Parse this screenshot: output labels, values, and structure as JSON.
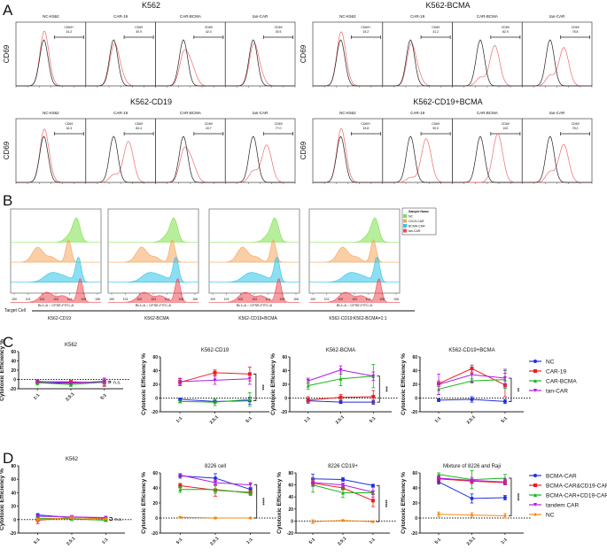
{
  "figure": {
    "panel_letters": [
      "A",
      "B",
      "C",
      "D"
    ]
  },
  "chart_data": [
    {
      "panel": "A",
      "type": "histogram-overlay",
      "y_label": "CD69",
      "groups": [
        {
          "title": "K562",
          "samples": [
            {
              "name": "NC-K562",
              "gate_label": "CD69+",
              "gate_value": "14.2"
            },
            {
              "name": "CAR-19",
              "gate_label": "CD69",
              "gate_value": "30.9"
            },
            {
              "name": "CAR-BCMA",
              "gate_label": "CD69",
              "gate_value": "42.4"
            },
            {
              "name": "tan-CAR",
              "gate_label": "CD69",
              "gate_value": "30.5"
            }
          ]
        },
        {
          "title": "K562-BCMA",
          "samples": [
            {
              "name": "NC-K562",
              "gate_label": "CD69+",
              "gate_value": "15.2"
            },
            {
              "name": "CAR-19",
              "gate_label": "CD69",
              "gate_value": "31.2"
            },
            {
              "name": "CAR-BCMA",
              "gate_label": "CD69",
              "gate_value": "82.9"
            },
            {
              "name": "tan-CAR",
              "gate_label": "CD69",
              "gate_value": "78.8"
            }
          ]
        },
        {
          "title": "K562-CD19",
          "samples": [
            {
              "name": "NC-K562",
              "gate_label": "CD69",
              "gate_value": "16.3"
            },
            {
              "name": "CAR-19",
              "gate_label": "CD69",
              "gate_value": "84.4"
            },
            {
              "name": "CAR-BCMA",
              "gate_label": "CD69",
              "gate_value": "43.7"
            },
            {
              "name": "tan-CAR",
              "gate_label": "CD69",
              "gate_value": "77.0"
            }
          ]
        },
        {
          "title": "K562-CD19+BCMA",
          "samples": [
            {
              "name": "NC-K562",
              "gate_label": "CD69+",
              "gate_value": "15.8"
            },
            {
              "name": "CAR-19",
              "gate_label": "CD69",
              "gate_value": "90.0"
            },
            {
              "name": "CAR-BCMA",
              "gate_label": "CD69",
              "gate_value": "100"
            },
            {
              "name": "tan-CAR",
              "gate_label": "CD69",
              "gate_value": "78.2"
            }
          ]
        }
      ],
      "x_tick_labels": [
        "10^0",
        "10^1",
        "10^2",
        "10^3",
        "10^4",
        "10^5",
        "10^6"
      ]
    },
    {
      "panel": "B",
      "type": "histogram-stacked",
      "x_label": "BL1-A :: CFSE-FITC-A",
      "x_tick_labels": [
        "10^0",
        "10^1",
        "10^2",
        "10^3",
        "10^4",
        "10^5",
        "10^6"
      ],
      "target_cell_label": "Target Cell",
      "target_cells": [
        "K562-CD19",
        "K562-BCMA",
        "K562-CD19+BCMA",
        "K562-CD19:K562-BCMA=1:1"
      ],
      "legend_title": "Sample Name",
      "legend": [
        {
          "name": "NC",
          "color": "#7be04a"
        },
        {
          "name": "CD19-CAR",
          "color": "#f5a55c"
        },
        {
          "name": "BCMA-CAR",
          "color": "#2ec4e8"
        },
        {
          "name": "tan-CAR",
          "color": "#ee4d55"
        }
      ]
    },
    {
      "panel": "C",
      "type": "line",
      "ylabel": "Cytotoxic Efficiency %",
      "ylim": [
        -20,
        60
      ],
      "yticks": [
        -20,
        0,
        20,
        40,
        60
      ],
      "categories": [
        "1:1",
        "2.5:1",
        "5:1"
      ],
      "legend": [
        {
          "name": "NC",
          "color": "#1f2fe0",
          "marker": "circle"
        },
        {
          "name": "CAR-19",
          "color": "#ee1c1c",
          "marker": "square"
        },
        {
          "name": "CAR-BCMA",
          "color": "#18b418",
          "marker": "triangle"
        },
        {
          "name": "tan-CAR",
          "color": "#b01ee0",
          "marker": "triangle-down"
        }
      ],
      "charts": [
        {
          "title": "K562",
          "significance": "n.s.",
          "series": [
            {
              "name": "NC",
              "values": [
                -7,
                -8,
                -4
              ],
              "err": [
                2,
                2,
                2
              ]
            },
            {
              "name": "CAR-19",
              "values": [
                -5,
                -5,
                -7
              ],
              "err": [
                3,
                2,
                8
              ]
            },
            {
              "name": "CAR-BCMA",
              "values": [
                -7,
                -11,
                -6
              ],
              "err": [
                5,
                4,
                4
              ]
            },
            {
              "name": "tan-CAR",
              "values": [
                -4,
                -7,
                -5
              ],
              "err": [
                3,
                3,
                8
              ]
            }
          ]
        },
        {
          "title": "K562-CD19",
          "significance": "***",
          "series": [
            {
              "name": "NC",
              "values": [
                -2,
                -5,
                -4
              ],
              "err": [
                2,
                2,
                5
              ]
            },
            {
              "name": "CAR-19",
              "values": [
                23,
                37,
                35
              ],
              "err": [
                5,
                4,
                10
              ]
            },
            {
              "name": "CAR-BCMA",
              "values": [
                -5,
                -6,
                -2
              ],
              "err": [
                2,
                5,
                10
              ]
            },
            {
              "name": "tan-CAR",
              "values": [
                24,
                26,
                28
              ],
              "err": [
                5,
                6,
                8
              ]
            }
          ]
        },
        {
          "title": "K562-BCMA",
          "significance": "***",
          "series": [
            {
              "name": "NC",
              "values": [
                -4,
                -6,
                -6
              ],
              "err": [
                2,
                2,
                3
              ]
            },
            {
              "name": "CAR-19",
              "values": [
                -3,
                1,
                2
              ],
              "err": [
                5,
                4,
                9
              ]
            },
            {
              "name": "CAR-BCMA",
              "values": [
                18,
                28,
                32
              ],
              "err": [
                5,
                10,
                17
              ]
            },
            {
              "name": "tan-CAR",
              "values": [
                25,
                41,
                32
              ],
              "err": [
                4,
                6,
                6
              ]
            }
          ]
        },
        {
          "title": "K562-CD19+BCMA",
          "significance": "**",
          "series": [
            {
              "name": "NC",
              "values": [
                -3,
                -2,
                -5
              ],
              "err": [
                2,
                4,
                3
              ]
            },
            {
              "name": "CAR-19",
              "values": [
                21,
                43,
                19
              ],
              "err": [
                4,
                5,
                17
              ]
            },
            {
              "name": "CAR-BCMA",
              "values": [
                13,
                25,
                27
              ],
              "err": [
                8,
                3,
                13
              ]
            },
            {
              "name": "tan-CAR",
              "values": [
                20,
                34,
                29
              ],
              "err": [
                15,
                11,
                13
              ]
            }
          ]
        }
      ]
    },
    {
      "panel": "D",
      "type": "line",
      "ylabel": "Cytotoxic Efficiency %",
      "categories": [
        "5:1",
        "2.5:1",
        "1:1"
      ],
      "legend": [
        {
          "name": "BCMA-CAR",
          "color": "#1f2fe0",
          "marker": "circle"
        },
        {
          "name": "BCMA-CAR&CD19-CAR",
          "color": "#ee1c1c",
          "marker": "square"
        },
        {
          "name": "BCMA-CAR+CD19-CAR",
          "color": "#18b418",
          "marker": "triangle"
        },
        {
          "name": "tandem CAR",
          "color": "#b01ee0",
          "marker": "triangle-down"
        },
        {
          "name": "NC",
          "color": "#f58a12",
          "marker": "diamond"
        }
      ],
      "charts": [
        {
          "title": "K562",
          "significance": "n.s.",
          "ylim": [
            -20,
            80
          ],
          "yticks": [
            -20,
            0,
            20,
            40,
            60,
            80
          ],
          "series": [
            {
              "name": "BCMA-CAR",
              "values": [
                7,
                3,
                2
              ],
              "err": [
                2,
                2,
                1
              ]
            },
            {
              "name": "BCMA-CAR&CD19-CAR",
              "values": [
                -1,
                3,
                1
              ],
              "err": [
                5,
                2,
                1
              ]
            },
            {
              "name": "BCMA-CAR+CD19-CAR",
              "values": [
                2,
                1,
                -1
              ],
              "err": [
                2,
                2,
                1
              ]
            },
            {
              "name": "tandem CAR",
              "values": [
                5,
                4,
                3
              ],
              "err": [
                2,
                2,
                1
              ]
            },
            {
              "name": "NC",
              "values": [
                0,
                3,
                1
              ],
              "err": [
                2,
                2,
                1
              ]
            }
          ]
        },
        {
          "title": "8226 cell",
          "significance": "****",
          "ylim": [
            -20,
            60
          ],
          "yticks": [
            -20,
            0,
            20,
            40,
            60
          ],
          "series": [
            {
              "name": "BCMA-CAR",
              "values": [
                56,
                53,
                38
              ],
              "err": [
                3,
                6,
                2
              ]
            },
            {
              "name": "BCMA-CAR&CD19-CAR",
              "values": [
                43,
                37,
                34
              ],
              "err": [
                3,
                8,
                3
              ]
            },
            {
              "name": "BCMA-CAR+CD19-CAR",
              "values": [
                38,
                38,
                33
              ],
              "err": [
                4,
                5,
                3
              ]
            },
            {
              "name": "tandem CAR",
              "values": [
                57,
                47,
                44
              ],
              "err": [
                2,
                3,
                3
              ]
            },
            {
              "name": "NC",
              "values": [
                1,
                0,
                0
              ],
              "err": [
                1,
                1,
                1
              ]
            }
          ]
        },
        {
          "title": "8226 CD19+",
          "significance": "****",
          "ylim": [
            -20,
            80
          ],
          "yticks": [
            -20,
            0,
            20,
            40,
            60,
            80
          ],
          "series": [
            {
              "name": "BCMA-CAR",
              "values": [
                70,
                69,
                59
              ],
              "err": [
                8,
                3,
                2
              ]
            },
            {
              "name": "BCMA-CAR&CD19-CAR",
              "values": [
                63,
                55,
                34
              ],
              "err": [
                5,
                3,
                10
              ]
            },
            {
              "name": "BCMA-CAR+CD19-CAR",
              "values": [
                60,
                47,
                47
              ],
              "err": [
                12,
                8,
                2
              ]
            },
            {
              "name": "tandem CAR",
              "values": [
                64,
                60,
                48
              ],
              "err": [
                6,
                3,
                8
              ]
            },
            {
              "name": "NC",
              "values": [
                -1,
                1,
                -1
              ],
              "err": [
                3,
                1,
                1
              ]
            }
          ]
        },
        {
          "title": "Mixture of 8226 and Raji",
          "significance": "****",
          "ylim": [
            -20,
            60
          ],
          "yticks": [
            -20,
            0,
            20,
            40,
            60
          ],
          "series": [
            {
              "name": "BCMA-CAR",
              "values": [
                48,
                26,
                27
              ],
              "err": [
                3,
                6,
                3
              ]
            },
            {
              "name": "BCMA-CAR&CD19-CAR",
              "values": [
                52,
                49,
                47
              ],
              "err": [
                4,
                3,
                3
              ]
            },
            {
              "name": "BCMA-CAR+CD19-CAR",
              "values": [
                58,
                51,
                53
              ],
              "err": [
                2,
                12,
                5
              ]
            },
            {
              "name": "tandem CAR",
              "values": [
                53,
                50,
                48
              ],
              "err": [
                3,
                4,
                4
              ]
            },
            {
              "name": "NC",
              "values": [
                5,
                4,
                3
              ],
              "err": [
                3,
                3,
                3
              ]
            }
          ]
        }
      ]
    }
  ]
}
